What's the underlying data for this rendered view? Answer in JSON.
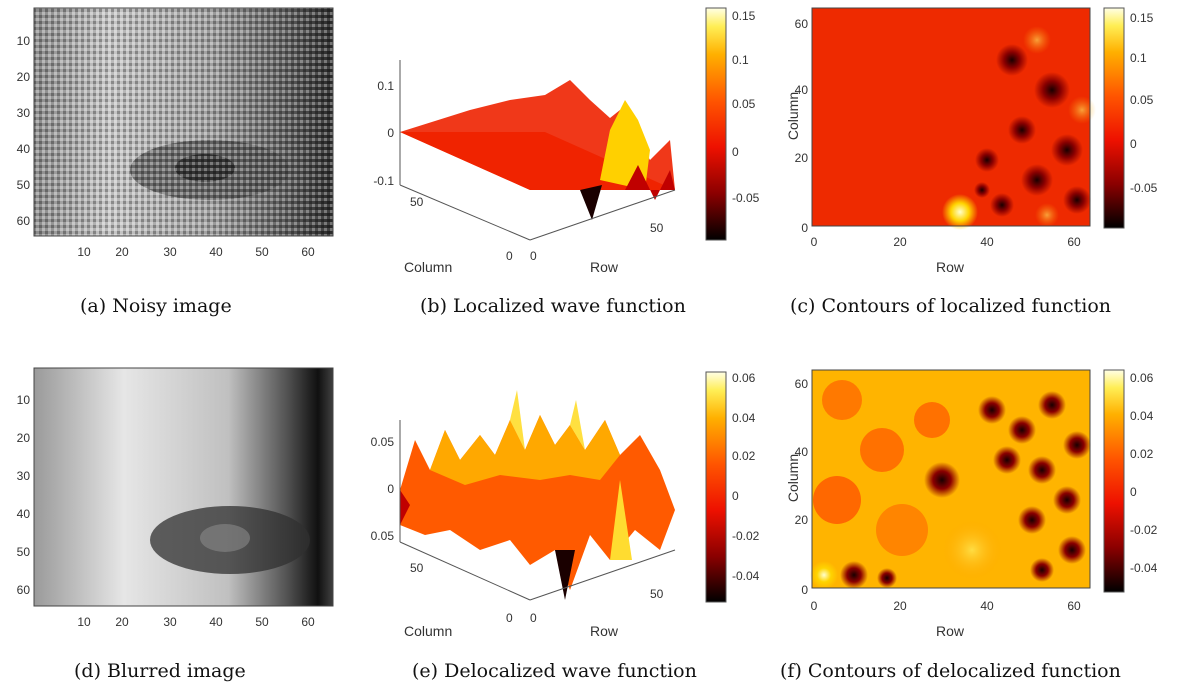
{
  "figure": {
    "panels": [
      {
        "id": "a",
        "caption": "(a)  Noisy image",
        "yticks": [
          "10",
          "20",
          "30",
          "40",
          "50",
          "60"
        ],
        "xticks": [
          "10",
          "20",
          "30",
          "40",
          "50",
          "60"
        ]
      },
      {
        "id": "b",
        "caption": "(b)  Localized wave function",
        "zticks": [
          "0.1",
          "0",
          "-0.1"
        ],
        "column_ticks": [
          "50",
          "0"
        ],
        "row_ticks": [
          "0",
          "50"
        ],
        "column_label": "Column",
        "row_label": "Row",
        "colorbar_ticks": [
          "0.15",
          "0.1",
          "0.05",
          "0",
          "-0.05"
        ]
      },
      {
        "id": "c",
        "caption": "(c)  Contours of localized function",
        "yticks": [
          "60",
          "40",
          "20",
          "0"
        ],
        "xticks": [
          "0",
          "20",
          "40",
          "60"
        ],
        "ylabel": "Column",
        "xlabel": "Row",
        "colorbar_ticks": [
          "0.15",
          "0.1",
          "0.05",
          "0",
          "-0.05"
        ]
      },
      {
        "id": "d",
        "caption": "(d)  Blurred image",
        "yticks": [
          "10",
          "20",
          "30",
          "40",
          "50",
          "60"
        ],
        "xticks": [
          "10",
          "20",
          "30",
          "40",
          "50",
          "60"
        ]
      },
      {
        "id": "e",
        "caption": "(e)  Delocalized wave function",
        "zticks": [
          "0.05",
          "0",
          "-0.05"
        ],
        "column_ticks": [
          "50",
          "0"
        ],
        "row_ticks": [
          "0",
          "50"
        ],
        "column_label": "Column",
        "row_label": "Row",
        "colorbar_ticks": [
          "0.06",
          "0.04",
          "0.02",
          "0",
          "-0.02",
          "-0.04"
        ]
      },
      {
        "id": "f",
        "caption": "(f)  Contours of delocalized function",
        "yticks": [
          "60",
          "40",
          "20",
          "0"
        ],
        "xticks": [
          "0",
          "20",
          "40",
          "60"
        ],
        "ylabel": "Column",
        "xlabel": "Row",
        "colorbar_ticks": [
          "0.06",
          "0.04",
          "0.02",
          "0",
          "-0.02",
          "-0.04"
        ]
      }
    ],
    "colormap": [
      "#000000",
      "#8b0000",
      "#e60000",
      "#ff4a00",
      "#ff9a00",
      "#ffe84a",
      "#ffffe0"
    ]
  }
}
